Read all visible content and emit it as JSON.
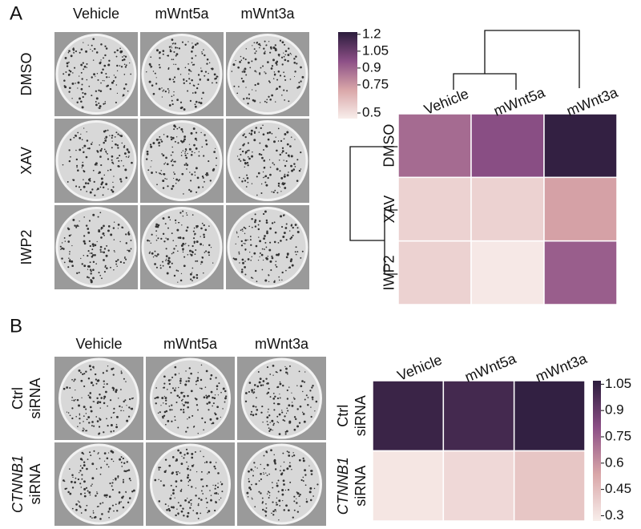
{
  "panel_labels": [
    "A",
    "B"
  ],
  "photos": [
    {
      "columns": [
        "Vehicle",
        "mWnt5a",
        "mWnt3a"
      ],
      "rows": [
        [
          "DMSO"
        ],
        [
          "XAV"
        ],
        [
          "IWP2"
        ]
      ]
    },
    {
      "columns": [
        "Vehicle",
        "mWnt5a",
        "mWnt3a"
      ],
      "rows": [
        [
          "Ctrl",
          "siRNA"
        ],
        [
          "CTNNB1",
          "siRNA"
        ]
      ]
    }
  ],
  "chart_data": [
    {
      "type": "heatmap",
      "x_categories": [
        "Vehicle",
        "mWnt5a",
        "mWnt3a"
      ],
      "y_categories": [
        [
          "DMSO"
        ],
        [
          "XAV"
        ],
        [
          "IWP2"
        ]
      ],
      "values": [
        [
          0.88,
          0.97,
          1.2
        ],
        [
          0.55,
          0.55,
          0.72
        ],
        [
          0.55,
          0.47,
          0.92
        ]
      ],
      "clim": [
        0.45,
        1.22
      ],
      "cticks": [
        0.5,
        0.75,
        0.9,
        1.05,
        1.2
      ],
      "colormap": [
        "#f8eeeb",
        "#d9a6a8",
        "#8c4f86",
        "#2b1c3c"
      ],
      "dendrogram": true
    },
    {
      "type": "heatmap",
      "x_categories": [
        "Vehicle",
        "mWnt5a",
        "mWnt3a"
      ],
      "y_categories": [
        [
          "Ctrl",
          "siRNA"
        ],
        [
          "CTNNB1",
          "siRNA"
        ]
      ],
      "values": [
        [
          1.03,
          1.0,
          1.05
        ],
        [
          0.3,
          0.35,
          0.42
        ]
      ],
      "clim": [
        0.27,
        1.07
      ],
      "cticks": [
        0.3,
        0.45,
        0.6,
        0.75,
        0.9,
        1.05
      ],
      "colormap": [
        "#f8eeeb",
        "#d9a6a8",
        "#8c4f86",
        "#2b1c3c"
      ],
      "dendrogram": false
    }
  ]
}
